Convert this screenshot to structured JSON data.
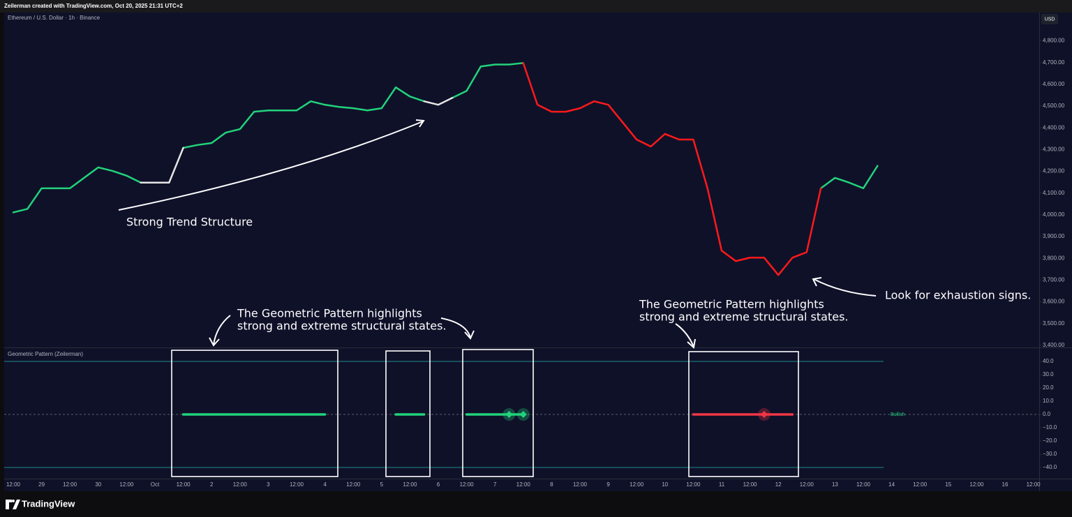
{
  "header": {
    "attribution": "Zeilerman created with TradingView.com, Oct 20, 2025 21:31 UTC+2",
    "symbol": "Ethereum / U.S. Dollar · 1h · Binance",
    "currency": "USD"
  },
  "chart_data": [
    {
      "type": "line",
      "categories": [
        "12:00",
        null,
        "29",
        null,
        "12:00",
        null,
        "30",
        null,
        "12:00",
        null,
        "Oct",
        null,
        "12:00",
        null,
        "2",
        null,
        "12:00",
        null,
        "3",
        null,
        "12:00",
        null,
        "4",
        null,
        "12:00",
        null,
        "5",
        null,
        "12:00",
        null,
        "6",
        null,
        "12:00",
        null,
        "7",
        null,
        "12:00",
        null,
        "8",
        null,
        "12:00",
        null,
        "9",
        null,
        "12:00",
        null,
        "10",
        null,
        "12:00",
        null,
        "11",
        null,
        "12:00",
        null,
        "12",
        null,
        "12:00",
        null,
        "13",
        null,
        "12:00",
        null,
        "14",
        null,
        "12:00",
        null,
        "15",
        null,
        "12:00",
        null,
        "16",
        null,
        "12:00"
      ],
      "series": [
        {
          "color": "#22d37b",
          "values": [
            4011,
            4027,
            4122,
            4122,
            4122,
            4170,
            4218,
            4202,
            4180,
            4148,
            null,
            null,
            4308,
            4321,
            4330,
            4378,
            4394,
            4474,
            4480,
            4480,
            4480,
            4522,
            4506,
            4496,
            4490,
            4480,
            4490,
            4586,
            4544,
            4522,
            null,
            4538,
            4570,
            4682,
            4691,
            4691,
            4698,
            null,
            null,
            null,
            null,
            null,
            null,
            null,
            null,
            null,
            null,
            null,
            null,
            null,
            null,
            null,
            null,
            null,
            null,
            null,
            null,
            4122,
            4170,
            4148,
            4122,
            4225,
            null,
            null,
            null,
            null,
            null,
            null,
            null,
            null,
            null,
            null,
            null
          ]
        },
        {
          "color": "#e6e6e6",
          "values": [
            null,
            null,
            null,
            null,
            null,
            null,
            null,
            null,
            null,
            4148,
            4148,
            4148,
            4308,
            null,
            null,
            null,
            null,
            null,
            null,
            null,
            null,
            null,
            null,
            null,
            null,
            null,
            null,
            null,
            null,
            4522,
            4506,
            4538,
            null,
            null,
            null,
            null,
            null,
            null,
            null,
            null,
            null,
            null,
            null,
            null,
            null,
            null,
            null,
            null,
            null,
            null,
            null,
            null,
            null,
            null,
            null,
            null,
            null,
            null,
            null,
            null,
            null,
            null,
            null,
            null,
            null,
            null,
            null,
            null,
            null,
            null,
            null,
            null,
            null
          ]
        },
        {
          "color": "#ff1a1a",
          "values": [
            null,
            null,
            null,
            null,
            null,
            null,
            null,
            null,
            null,
            null,
            null,
            null,
            null,
            null,
            null,
            null,
            null,
            null,
            null,
            null,
            null,
            null,
            null,
            null,
            null,
            null,
            null,
            null,
            null,
            null,
            null,
            null,
            null,
            null,
            null,
            null,
            4698,
            4506,
            4474,
            4474,
            4490,
            4522,
            4506,
            4426,
            4346,
            4314,
            4372,
            4346,
            4346,
            4122,
            3835,
            3787,
            3803,
            3803,
            3723,
            3803,
            3828,
            4122,
            null,
            null,
            null,
            null,
            null,
            null,
            null,
            null,
            null,
            null,
            null,
            null,
            null,
            null,
            null
          ]
        }
      ],
      "ylim": [
        3390,
        4930
      ],
      "yticks": [
        {
          "value": 4800,
          "label": "4,800.00"
        },
        {
          "value": 4700,
          "label": "4,700.00"
        },
        {
          "value": 4600,
          "label": "4,600.00"
        },
        {
          "value": 4500,
          "label": "4,500.00"
        },
        {
          "value": 4400,
          "label": "4,400.00"
        },
        {
          "value": 4300,
          "label": "4,300.00"
        },
        {
          "value": 4200,
          "label": "4,200.00"
        },
        {
          "value": 4100,
          "label": "4,100.00"
        },
        {
          "value": 4000,
          "label": "4,000.00"
        },
        {
          "value": 3900,
          "label": "3,900.00"
        },
        {
          "value": 3800,
          "label": "3,800.00"
        },
        {
          "value": 3700,
          "label": "3,700.00"
        },
        {
          "value": 3600,
          "label": "3,600.00"
        },
        {
          "value": 3500,
          "label": "3,500.00"
        },
        {
          "value": 3400,
          "label": "3,400.00"
        }
      ],
      "annotations": [
        [
          "Strong Trend Structure"
        ],
        [
          "The Geometric Pattern highlights",
          "strong and extreme structural states."
        ],
        [
          "The Geometric Pattern highlights",
          "strong and extreme structural states."
        ],
        [
          "Look for exhaustion signs."
        ]
      ]
    },
    {
      "type": "line",
      "title": "Geometric Pattern (Zeilerman)",
      "state_label": "Bullish",
      "series": [
        {
          "color": "#22d37b",
          "values": [
            null,
            null,
            null,
            null,
            null,
            null,
            null,
            null,
            null,
            null,
            null,
            null,
            0,
            0,
            0,
            0,
            0,
            0,
            0,
            0,
            0,
            0,
            0,
            null,
            null,
            null,
            null,
            0,
            0,
            0,
            null,
            null,
            0,
            0,
            0,
            0,
            0,
            null,
            null,
            null,
            null,
            null,
            null,
            null,
            null,
            null,
            null,
            null,
            null,
            null,
            null,
            null,
            null,
            null,
            null,
            null,
            null,
            null,
            null,
            null,
            null,
            null,
            null,
            null,
            null,
            null,
            null,
            null,
            null,
            null,
            null,
            null,
            null
          ]
        },
        {
          "color": "#f23645",
          "values": [
            null,
            null,
            null,
            null,
            null,
            null,
            null,
            null,
            null,
            null,
            null,
            null,
            null,
            null,
            null,
            null,
            null,
            null,
            null,
            null,
            null,
            null,
            null,
            null,
            null,
            null,
            null,
            null,
            null,
            null,
            null,
            null,
            null,
            null,
            null,
            null,
            null,
            null,
            null,
            null,
            null,
            null,
            null,
            null,
            null,
            null,
            null,
            null,
            0,
            0,
            0,
            0,
            0,
            0,
            0,
            0,
            null,
            null,
            null,
            null,
            null,
            null,
            null,
            null,
            null,
            null,
            null,
            null,
            null,
            null,
            null,
            null,
            null
          ]
        }
      ],
      "markers": {
        "x": [
          35,
          36,
          53
        ],
        "values": [
          0,
          0,
          0
        ],
        "colors": [
          "#22d37b",
          "#22d37b",
          "#f23645"
        ]
      },
      "hlines": [
        40,
        -40
      ],
      "hline_color": "#1f8a86",
      "dashed_zero": true,
      "ylim": [
        -48.4,
        49.5
      ],
      "yticks": [
        {
          "value": 40,
          "label": "40.0"
        },
        {
          "value": 30,
          "label": "30.0"
        },
        {
          "value": 20,
          "label": "20.0"
        },
        {
          "value": 10,
          "label": "10.0"
        },
        {
          "value": 0,
          "label": "0.0"
        },
        {
          "value": -10,
          "label": "−10.0"
        },
        {
          "value": -20,
          "label": "−20.0"
        },
        {
          "value": -30,
          "label": "−30.0"
        },
        {
          "value": -40,
          "label": "−40.0"
        }
      ]
    }
  ],
  "footer": {
    "brand": "TradingView"
  }
}
